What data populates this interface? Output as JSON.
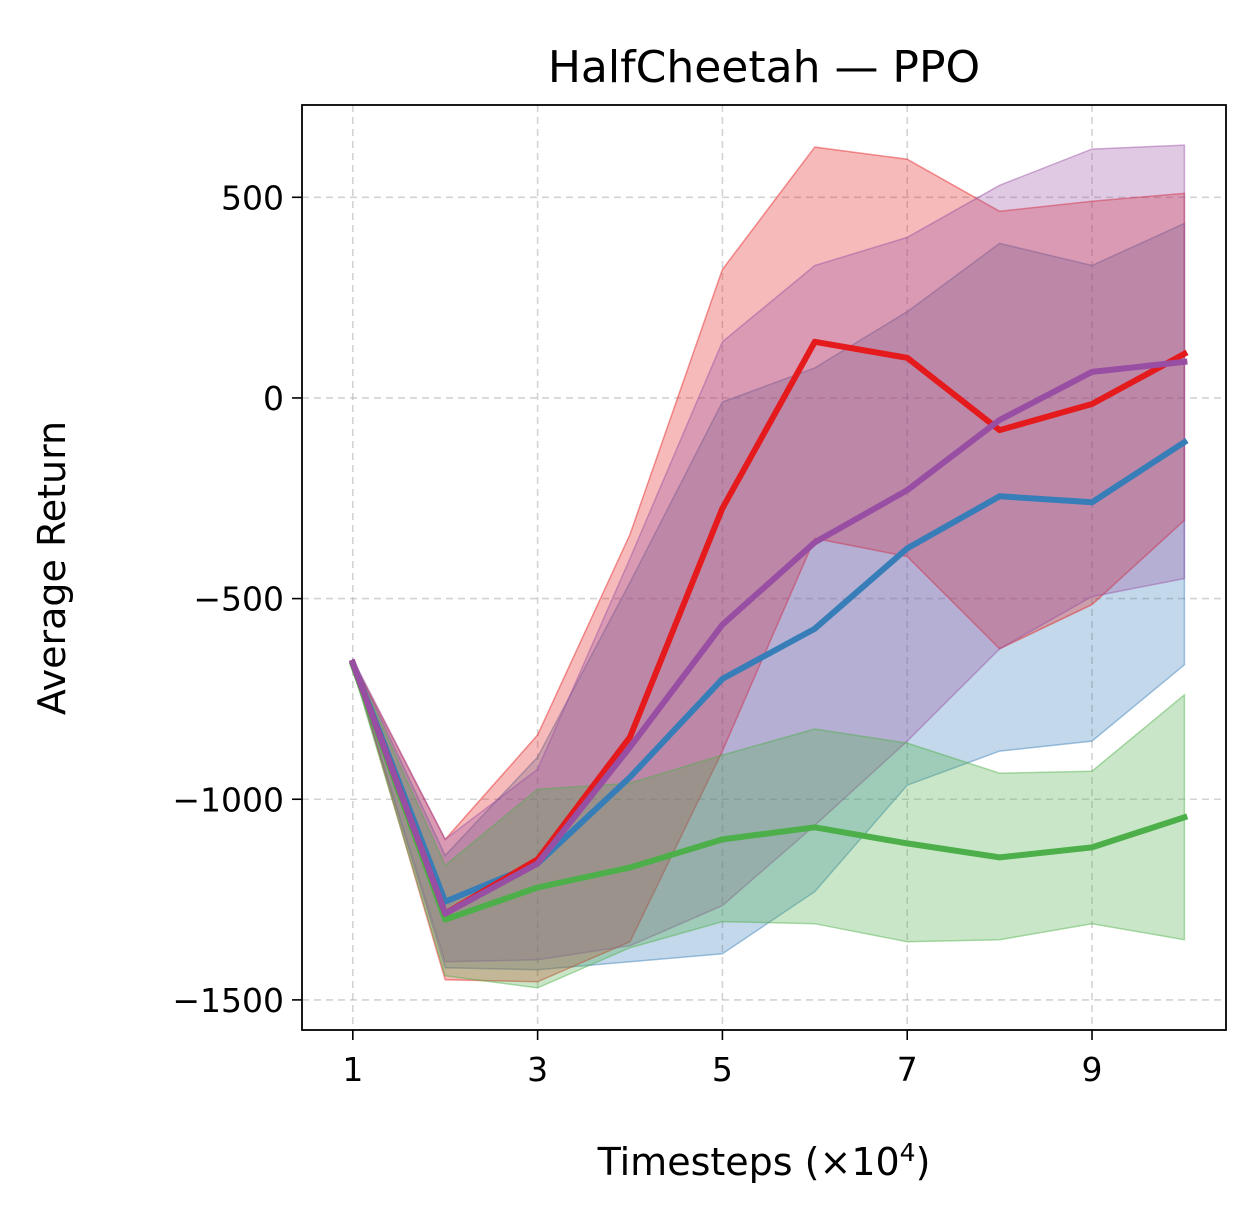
{
  "chart_data": {
    "type": "line",
    "title": "HalfCheetah — PPO",
    "xlabel": "Timesteps (×10",
    "xlabel_sup": "4",
    "xlabel_close": ")",
    "ylabel": "Average Return",
    "xlim": [
      0.45,
      10.45
    ],
    "ylim": [
      -1575,
      730
    ],
    "xticks": [
      1,
      3,
      5,
      7,
      9
    ],
    "xtick_labels": [
      "1",
      "3",
      "5",
      "7",
      "9"
    ],
    "yticks": [
      500,
      0,
      -500,
      -1000,
      -1500
    ],
    "ytick_labels": [
      "500",
      "0",
      "−500",
      "−1000",
      "−1500"
    ],
    "grid": true,
    "x": [
      1,
      2,
      3,
      4,
      5,
      6,
      7,
      8,
      9,
      10
    ],
    "series": [
      {
        "name": "blue",
        "color": "#377eb8",
        "mean": [
          -660,
          -1255,
          -1160,
          -945,
          -700,
          -575,
          -375,
          -245,
          -260,
          -110
        ],
        "upper": [
          -650,
          -1140,
          -895,
          -460,
          -10,
          75,
          215,
          385,
          330,
          435
        ],
        "lower": [
          -670,
          -1420,
          -1425,
          -1405,
          -1385,
          -1230,
          -965,
          -880,
          -855,
          -665
        ]
      },
      {
        "name": "red",
        "color": "#e41a1c",
        "mean": [
          -660,
          -1285,
          -1150,
          -845,
          -275,
          140,
          100,
          -80,
          -15,
          110
        ],
        "upper": [
          -655,
          -1100,
          -840,
          -340,
          320,
          625,
          595,
          465,
          490,
          510
        ],
        "lower": [
          -665,
          -1450,
          -1455,
          -1355,
          -880,
          -350,
          -395,
          -625,
          -515,
          -305
        ]
      },
      {
        "name": "purple",
        "color": "#984ea3",
        "mean": [
          -660,
          -1285,
          -1160,
          -870,
          -565,
          -360,
          -230,
          -55,
          65,
          90
        ],
        "upper": [
          -650,
          -1100,
          -925,
          -400,
          140,
          330,
          400,
          530,
          620,
          630
        ],
        "lower": [
          -670,
          -1405,
          -1400,
          -1365,
          -1265,
          -1065,
          -855,
          -625,
          -495,
          -450
        ]
      },
      {
        "name": "green",
        "color": "#4daf4a",
        "mean": [
          -665,
          -1300,
          -1220,
          -1170,
          -1100,
          -1070,
          -1110,
          -1145,
          -1120,
          -1045
        ],
        "upper": [
          -655,
          -1165,
          -975,
          -960,
          -890,
          -825,
          -860,
          -935,
          -930,
          -740
        ],
        "lower": [
          -675,
          -1440,
          -1470,
          -1370,
          -1305,
          -1310,
          -1355,
          -1350,
          -1310,
          -1350
        ]
      }
    ],
    "draw_order_bands": [
      "blue",
      "red",
      "purple",
      "green"
    ],
    "draw_order_lines": [
      "green",
      "blue",
      "red",
      "purple"
    ]
  }
}
